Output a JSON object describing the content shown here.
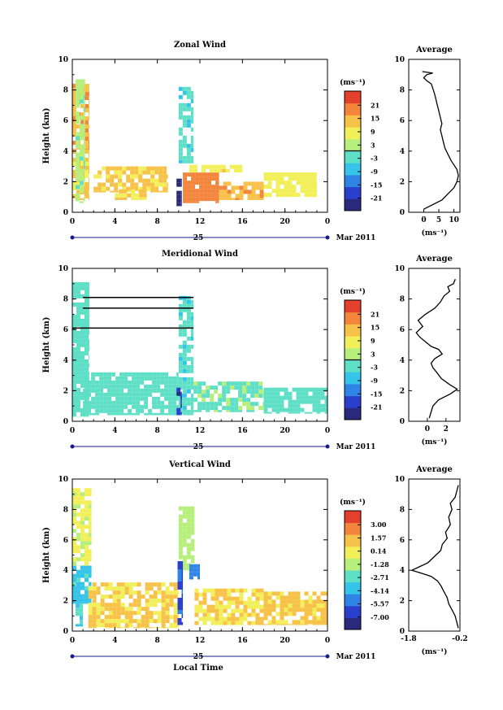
{
  "chart_data": [
    {
      "type": "heatmap",
      "title": "Zonal Wind",
      "xlabel": "",
      "ylabel": "Height (km)",
      "xlim": [
        0,
        24
      ],
      "ylim": [
        0,
        10
      ],
      "x_ticks": [
        "0",
        "4",
        "8",
        "12",
        "16",
        "20",
        "0"
      ],
      "y_ticks": [
        "0",
        "2",
        "4",
        "6",
        "8",
        "10"
      ],
      "date_label": "25",
      "month_label": "Mar 2011",
      "colorbar": {
        "unit": "(ms⁻¹)",
        "ticks": [
          "21",
          "15",
          "9",
          "3",
          "-3",
          "-9",
          "-15",
          "-21"
        ],
        "range": [
          -24,
          24
        ],
        "colors": [
          "#2a2a7a",
          "#2b3fcf",
          "#2f84e6",
          "#36c4e8",
          "#5fe0c6",
          "#b6ef7b",
          "#f2f05a",
          "#f7c24a",
          "#f3863c",
          "#e3402e"
        ]
      },
      "patches": [
        {
          "x": [
            0,
            1.6
          ],
          "y": [
            4.1,
            8.4
          ],
          "value": 14
        },
        {
          "x": [
            0,
            1.6
          ],
          "y": [
            0.8,
            4.1
          ],
          "value": 10
        },
        {
          "x": [
            0.3,
            1.2
          ],
          "y": [
            0.6,
            8.7
          ],
          "value": 1
        },
        {
          "x": [
            2,
            9
          ],
          "y": [
            1.3,
            3
          ],
          "value": 10
        },
        {
          "x": [
            4,
            7
          ],
          "y": [
            0.8,
            1.5
          ],
          "value": 9
        },
        {
          "x": [
            10,
            11.4
          ],
          "y": [
            3.2,
            8.2
          ],
          "value": -4
        },
        {
          "x": [
            9.8,
            10.3
          ],
          "y": [
            0.4,
            2.2
          ],
          "value": -21
        },
        {
          "x": [
            10.4,
            13.8
          ],
          "y": [
            0.6,
            2.6
          ],
          "value": 17
        },
        {
          "x": [
            11,
            16
          ],
          "y": [
            2.6,
            3.1
          ],
          "value": 8
        },
        {
          "x": [
            13.8,
            18
          ],
          "y": [
            0.8,
            2
          ],
          "value": 13
        },
        {
          "x": [
            18,
            23
          ],
          "y": [
            1,
            2.6
          ],
          "value": 7
        }
      ],
      "average_profile": {
        "title": "Average",
        "xlabel": "(ms⁻¹)",
        "ylabel": "",
        "xlim": [
          -5,
          12
        ],
        "ylim": [
          0,
          10
        ],
        "x_ticks": [
          0,
          5,
          10
        ],
        "y_ticks": [
          0,
          2,
          4,
          6,
          8,
          10
        ],
        "x": [
          0,
          3,
          6,
          8,
          10,
          11,
          11.5,
          11,
          10,
          9,
          8,
          7,
          6.5,
          6,
          5.5,
          6,
          5.5,
          5,
          4.5,
          4,
          3.5,
          3,
          2.5,
          1,
          0,
          1,
          3,
          -0.5
        ],
        "y": [
          0.2,
          0.5,
          0.8,
          1.2,
          1.6,
          2,
          2.4,
          2.8,
          3.1,
          3.4,
          3.8,
          4.2,
          4.6,
          5,
          5.4,
          5.8,
          6.2,
          6.6,
          7,
          7.4,
          7.8,
          8.1,
          8.4,
          8.6,
          8.8,
          9,
          9.1,
          9.2
        ]
      }
    },
    {
      "type": "heatmap",
      "title": "Meridional Wind",
      "xlabel": "",
      "ylabel": "Height (km)",
      "xlim": [
        0,
        24
      ],
      "ylim": [
        0,
        10
      ],
      "x_ticks": [
        "0",
        "4",
        "8",
        "12",
        "16",
        "20",
        "0"
      ],
      "y_ticks": [
        "0",
        "2",
        "4",
        "6",
        "8",
        "10"
      ],
      "date_label": "25",
      "month_label": "Mar 2011",
      "colorbar": {
        "unit": "(ms⁻¹)",
        "ticks": [
          "21",
          "15",
          "9",
          "3",
          "-3",
          "-9",
          "-15",
          "-21"
        ],
        "range": [
          -24,
          24
        ],
        "colors": [
          "#2a2a7a",
          "#2b3fcf",
          "#2f84e6",
          "#36c4e8",
          "#5fe0c6",
          "#b6ef7b",
          "#f2f05a",
          "#f7c24a",
          "#f3863c",
          "#e3402e"
        ]
      },
      "patches": [
        {
          "x": [
            0,
            1.6
          ],
          "y": [
            0.3,
            9.1
          ],
          "value": -3
        },
        {
          "x": [
            1,
            10
          ],
          "y": [
            0.4,
            3.2
          ],
          "value": -2
        },
        {
          "x": [
            10,
            11.4
          ],
          "y": [
            0.4,
            8.2
          ],
          "value": -4
        },
        {
          "x": [
            9.8,
            10.3
          ],
          "y": [
            0.4,
            2.2
          ],
          "value": -19
        },
        {
          "x": [
            11.4,
            18
          ],
          "y": [
            0.6,
            2.6
          ],
          "value": -1
        },
        {
          "x": [
            18,
            24
          ],
          "y": [
            0.5,
            2.2
          ],
          "value": -2
        }
      ],
      "contour_lines": [
        {
          "x": [
            1,
            11.4
          ],
          "y": 8.1
        },
        {
          "x": [
            1,
            11.4
          ],
          "y": 7.4
        },
        {
          "x": [
            0,
            11.4
          ],
          "y": 6.1
        }
      ],
      "average_profile": {
        "title": "Average",
        "xlabel": "(ms⁻¹)",
        "ylabel": "",
        "xlim": [
          -2,
          3.5
        ],
        "ylim": [
          0,
          10
        ],
        "x_ticks": [
          0,
          2
        ],
        "y_ticks": [
          0,
          2,
          4,
          6,
          8,
          10
        ],
        "x": [
          0.2,
          0.4,
          0.6,
          1.2,
          2.5,
          3.2,
          2.4,
          1.5,
          1,
          0.6,
          0.4,
          0.8,
          1.6,
          1.2,
          0.4,
          -0.2,
          -0.8,
          -1.2,
          -0.5,
          -1,
          -0.2,
          0.8,
          1.4,
          1.8,
          2.4,
          2.2,
          2.8,
          3
        ],
        "y": [
          0.2,
          0.6,
          1,
          1.4,
          1.8,
          2.1,
          2.4,
          2.8,
          3.2,
          3.5,
          3.8,
          4.1,
          4.4,
          4.7,
          4.9,
          5.2,
          5.5,
          5.8,
          6.2,
          6.6,
          7,
          7.4,
          7.8,
          8.2,
          8.5,
          8.8,
          9,
          9.3
        ]
      }
    },
    {
      "type": "heatmap",
      "title": "Vertical Wind",
      "xlabel": "Local Time",
      "ylabel": "Height (km)",
      "xlim": [
        0,
        24
      ],
      "ylim": [
        0,
        10
      ],
      "x_ticks": [
        "0",
        "4",
        "8",
        "12",
        "16",
        "20",
        "0"
      ],
      "y_ticks": [
        "0",
        "2",
        "4",
        "6",
        "8",
        "10"
      ],
      "date_label": "25",
      "month_label": "Mar 2011",
      "colorbar": {
        "unit": "(ms⁻¹)",
        "ticks": [
          "3.00",
          "1.57",
          "0.14",
          "-1.28",
          "-2.71",
          "-4.14",
          "-5.57",
          "-7.00"
        ],
        "range": [
          -7.7,
          3.7
        ],
        "colors": [
          "#2a2a7a",
          "#2b3fcf",
          "#2f84e6",
          "#36c4e8",
          "#5fe0c6",
          "#b6ef7b",
          "#f2f05a",
          "#f7c24a",
          "#f3863c",
          "#e3402e"
        ]
      },
      "patches": [
        {
          "x": [
            0,
            1.8
          ],
          "y": [
            4.3,
            9.4
          ],
          "value": -0.8
        },
        {
          "x": [
            0,
            1.8
          ],
          "y": [
            1.8,
            4.3
          ],
          "value": -3.5
        },
        {
          "x": [
            0.3,
            1
          ],
          "y": [
            0.3,
            1.8
          ],
          "value": -3.2
        },
        {
          "x": [
            1.5,
            10
          ],
          "y": [
            0.2,
            3.2
          ],
          "value": 0.3
        },
        {
          "x": [
            10,
            11.5
          ],
          "y": [
            4,
            8.2
          ],
          "value": -1.6
        },
        {
          "x": [
            9.9,
            10.4
          ],
          "y": [
            0.4,
            4.6
          ],
          "value": -5.8
        },
        {
          "x": [
            11,
            12
          ],
          "y": [
            3.4,
            4.4
          ],
          "value": -4.8
        },
        {
          "x": [
            11.5,
            18
          ],
          "y": [
            0.4,
            2.8
          ],
          "value": 0.2
        },
        {
          "x": [
            18,
            24
          ],
          "y": [
            0.4,
            2.6
          ],
          "value": 0.4
        }
      ],
      "average_profile": {
        "title": "Average",
        "xlabel": "(ms⁻¹)",
        "ylabel": "",
        "xlim": [
          -1.8,
          -0.2
        ],
        "ylim": [
          0,
          10
        ],
        "x_ticks": [
          -1.8,
          -0.2
        ],
        "y_ticks": [
          0,
          2,
          4,
          6,
          8,
          10
        ],
        "x": [
          -0.25,
          -0.3,
          -0.35,
          -0.45,
          -0.55,
          -0.6,
          -0.7,
          -0.8,
          -0.9,
          -1.1,
          -1.4,
          -1.7,
          -1.5,
          -1.2,
          -1.0,
          -0.8,
          -0.75,
          -0.6,
          -0.65,
          -0.5,
          -0.55,
          -0.45,
          -0.5,
          -0.35,
          -0.3,
          -0.25
        ],
        "y": [
          0.2,
          0.6,
          1,
          1.4,
          1.8,
          2.2,
          2.6,
          3,
          3.3,
          3.6,
          3.8,
          4,
          4.2,
          4.5,
          4.9,
          5.3,
          5.7,
          6.1,
          6.5,
          7,
          7.5,
          8,
          8.4,
          8.8,
          9.2,
          9.6
        ]
      }
    }
  ]
}
